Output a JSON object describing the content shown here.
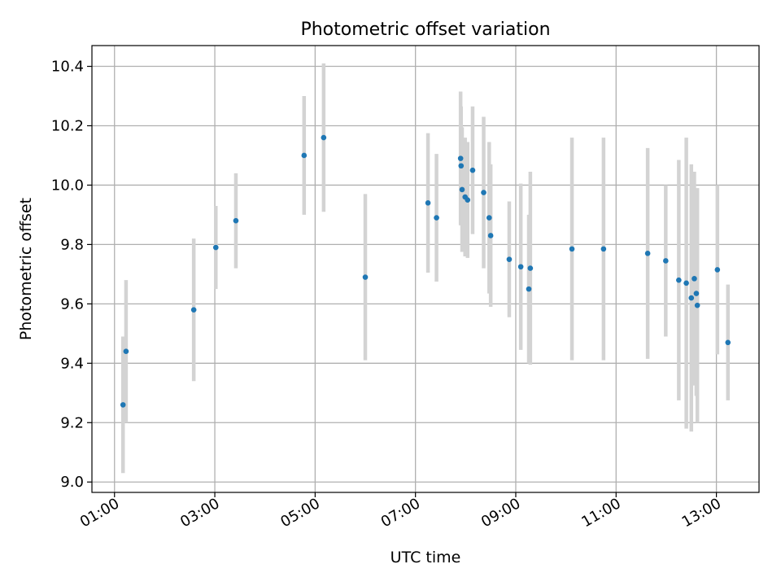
{
  "chart_data": {
    "type": "scatter",
    "title": "Photometric offset variation",
    "xlabel": "UTC time",
    "ylabel": "Photometric offset",
    "grid": true,
    "legend": "none",
    "x_unit": "hours UTC",
    "xlim": [
      0.55,
      13.85
    ],
    "ylim": [
      8.965,
      10.47
    ],
    "xticks": [
      1,
      3,
      5,
      7,
      9,
      11,
      13
    ],
    "xtick_labels": [
      "01:00",
      "03:00",
      "05:00",
      "07:00",
      "09:00",
      "11:00",
      "13:00"
    ],
    "yticks": [
      9.0,
      9.2,
      9.4,
      9.6,
      9.8,
      10.0,
      10.2,
      10.4
    ],
    "ytick_labels": [
      "9.0",
      "9.2",
      "9.4",
      "9.6",
      "9.8",
      "10.0",
      "10.2",
      "10.4"
    ],
    "colors": {
      "point": "#1f77b4",
      "errorbar": "#d3d3d3",
      "grid": "#b0b0b0"
    },
    "series": [
      {
        "x": [
          1.17,
          1.23,
          2.58,
          3.02,
          3.42,
          4.78,
          5.17,
          6.0,
          7.25,
          7.42,
          7.9,
          7.91,
          7.93,
          7.99,
          8.04,
          8.14,
          8.36,
          8.47,
          8.5,
          8.87,
          9.1,
          9.26,
          9.29,
          10.12,
          10.75,
          11.63,
          11.99,
          12.25,
          12.4,
          12.5,
          12.56,
          12.6,
          12.62,
          13.02,
          13.23
        ],
        "y": [
          9.26,
          9.44,
          9.58,
          9.79,
          9.88,
          10.1,
          10.16,
          9.69,
          9.94,
          9.89,
          10.09,
          10.065,
          9.985,
          9.96,
          9.95,
          10.05,
          9.975,
          9.89,
          9.83,
          9.75,
          9.725,
          9.65,
          9.72,
          9.785,
          9.785,
          9.77,
          9.745,
          9.68,
          9.67,
          9.62,
          9.685,
          9.635,
          9.595,
          9.715,
          9.47
        ],
        "yerr": [
          0.23,
          0.24,
          0.24,
          0.14,
          0.16,
          0.2,
          0.25,
          0.28,
          0.235,
          0.215,
          0.225,
          0.2,
          0.21,
          0.2,
          0.195,
          0.215,
          0.255,
          0.255,
          0.24,
          0.195,
          0.28,
          0.25,
          0.325,
          0.375,
          0.375,
          0.355,
          0.255,
          0.405,
          0.49,
          0.45,
          0.36,
          0.345,
          0.395,
          0.285,
          0.195
        ]
      }
    ]
  }
}
